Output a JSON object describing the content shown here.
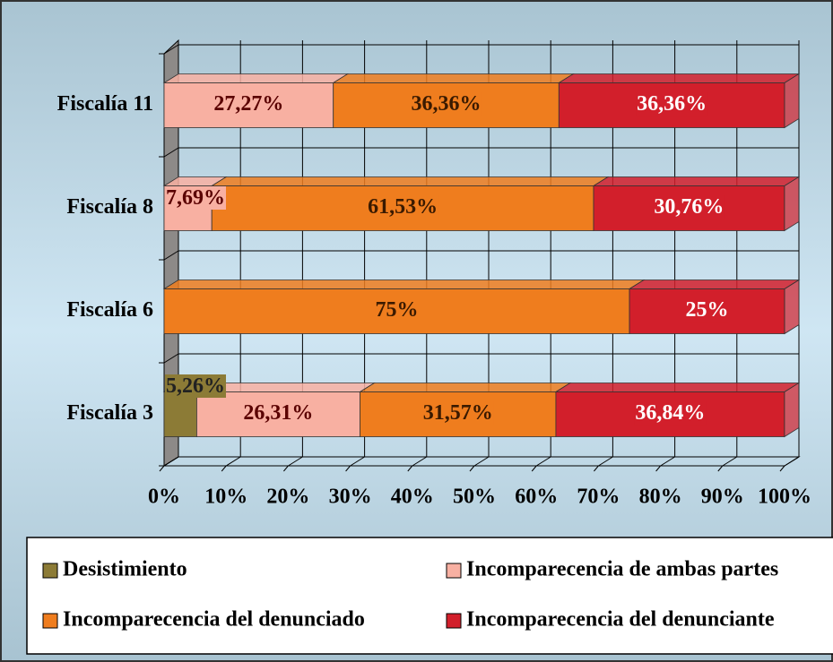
{
  "chart_data": {
    "type": "bar",
    "orientation": "horizontal",
    "stacked": true,
    "categories": [
      "Fiscalía 3",
      "Fiscalía 6",
      "Fiscalía 8",
      "Fiscalía 11"
    ],
    "series": [
      {
        "name": "Desistimiento",
        "color": "#8c7b36",
        "values": [
          5.26,
          null,
          null,
          null
        ],
        "value_labels": [
          "5,26%",
          null,
          null,
          null
        ]
      },
      {
        "name": "Incomparecencia de ambas partes",
        "color": "#f8b0a2",
        "values": [
          26.31,
          null,
          7.69,
          27.27
        ],
        "value_labels": [
          "26,31%",
          null,
          "7,69%",
          "27,27%"
        ]
      },
      {
        "name": "Incomparecencia del denunciado",
        "color": "#ef7d1e",
        "values": [
          31.57,
          75,
          61.53,
          36.36
        ],
        "value_labels": [
          "31,57%",
          "75%",
          "61,53%",
          "36,36%"
        ]
      },
      {
        "name": "Incomparecencia del denunciante",
        "color": "#d21f2b",
        "values": [
          36.84,
          25,
          30.76,
          36.36
        ],
        "value_labels": [
          "36,84%",
          "25%",
          "30,76%",
          "36,36%"
        ]
      }
    ],
    "xlim": [
      0,
      100
    ],
    "xticks": [
      {
        "value": 0,
        "label": "0%"
      },
      {
        "value": 10,
        "label": "10%"
      },
      {
        "value": 20,
        "label": "20%"
      },
      {
        "value": 30,
        "label": "30%"
      },
      {
        "value": 40,
        "label": "40%"
      },
      {
        "value": 50,
        "label": "50%"
      },
      {
        "value": 60,
        "label": "60%"
      },
      {
        "value": 70,
        "label": "70%"
      },
      {
        "value": 80,
        "label": "80%"
      },
      {
        "value": 90,
        "label": "90%"
      },
      {
        "value": 100,
        "label": "100%"
      }
    ],
    "grid": true
  }
}
